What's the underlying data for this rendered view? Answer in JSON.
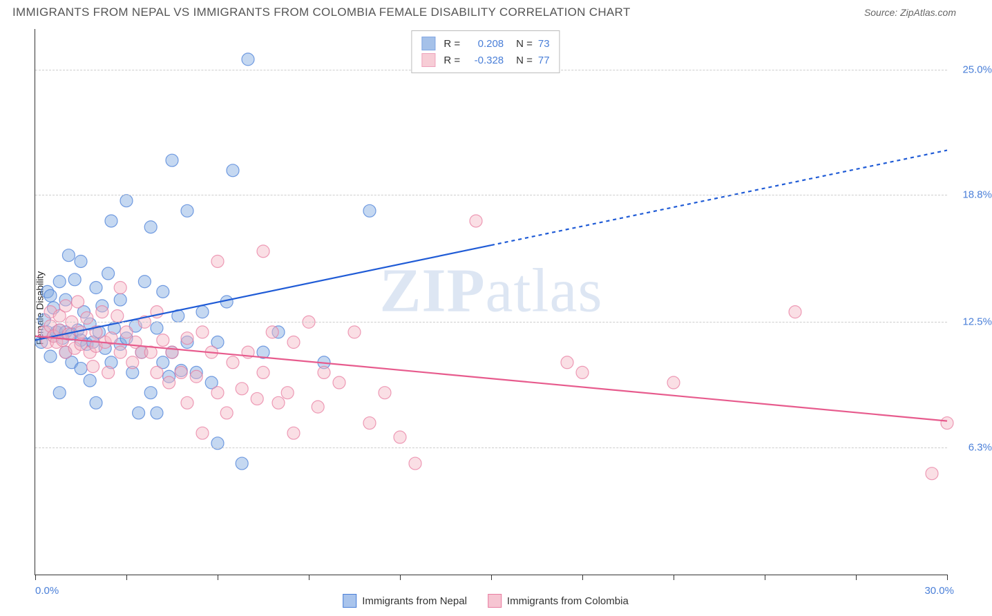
{
  "title": "IMMIGRANTS FROM NEPAL VS IMMIGRANTS FROM COLOMBIA FEMALE DISABILITY CORRELATION CHART",
  "source": "Source: ZipAtlas.com",
  "watermark_zip": "ZIP",
  "watermark_atlas": "atlas",
  "ylabel": "Female Disability",
  "chart": {
    "type": "scatter",
    "xlim": [
      0,
      30
    ],
    "ylim": [
      0,
      27
    ],
    "xlim_labels": {
      "min": "0.0%",
      "max": "30.0%"
    },
    "xticks": [
      0,
      3,
      6,
      9,
      12,
      15,
      18,
      21,
      24,
      27,
      30
    ],
    "yticks": [
      {
        "value": 6.3,
        "label": "6.3%"
      },
      {
        "value": 12.5,
        "label": "12.5%"
      },
      {
        "value": 18.8,
        "label": "18.8%"
      },
      {
        "value": 25.0,
        "label": "25.0%"
      }
    ],
    "grid_color": "#cccccc",
    "background_color": "#ffffff",
    "marker_radius": 9,
    "marker_opacity": 0.45,
    "marker_stroke_opacity": 0.75,
    "line_width": 2.2,
    "dash_pattern": "5,5",
    "series": [
      {
        "name": "Immigrants from Nepal",
        "color": "#7fa8e0",
        "stroke": "#4a7fd8",
        "line_color": "#1f5bd6",
        "r_value": "0.208",
        "n_value": "73",
        "trend_solid": {
          "x1": 0,
          "y1": 11.6,
          "x2": 15,
          "y2": 16.3
        },
        "trend_dash": {
          "x1": 15,
          "y1": 16.3,
          "x2": 30,
          "y2": 21.0
        },
        "points": [
          [
            0.2,
            11.5
          ],
          [
            0.3,
            12.6
          ],
          [
            0.4,
            12.0
          ],
          [
            0.4,
            14.0
          ],
          [
            0.5,
            10.8
          ],
          [
            0.5,
            13.8
          ],
          [
            0.6,
            11.8
          ],
          [
            0.6,
            13.2
          ],
          [
            0.7,
            12.0
          ],
          [
            0.8,
            9.0
          ],
          [
            0.8,
            12.1
          ],
          [
            0.8,
            14.5
          ],
          [
            0.9,
            11.7
          ],
          [
            1.0,
            12.0
          ],
          [
            1.0,
            11.0
          ],
          [
            1.0,
            13.6
          ],
          [
            1.1,
            15.8
          ],
          [
            1.2,
            10.5
          ],
          [
            1.2,
            11.9
          ],
          [
            1.3,
            14.6
          ],
          [
            1.4,
            12.1
          ],
          [
            1.5,
            11.6
          ],
          [
            1.5,
            10.2
          ],
          [
            1.5,
            15.5
          ],
          [
            1.6,
            13.0
          ],
          [
            1.7,
            11.4
          ],
          [
            1.8,
            12.4
          ],
          [
            1.8,
            9.6
          ],
          [
            1.9,
            11.5
          ],
          [
            2.0,
            14.2
          ],
          [
            2.0,
            8.5
          ],
          [
            2.1,
            12.0
          ],
          [
            2.2,
            13.3
          ],
          [
            2.3,
            11.2
          ],
          [
            2.4,
            14.9
          ],
          [
            2.5,
            10.5
          ],
          [
            2.5,
            17.5
          ],
          [
            2.6,
            12.2
          ],
          [
            2.8,
            13.6
          ],
          [
            2.8,
            11.4
          ],
          [
            3.0,
            18.5
          ],
          [
            3.0,
            11.7
          ],
          [
            3.2,
            10.0
          ],
          [
            3.3,
            12.3
          ],
          [
            3.4,
            8.0
          ],
          [
            3.5,
            11.0
          ],
          [
            3.6,
            14.5
          ],
          [
            3.8,
            9.0
          ],
          [
            3.8,
            17.2
          ],
          [
            4.0,
            12.2
          ],
          [
            4.0,
            8.0
          ],
          [
            4.2,
            10.5
          ],
          [
            4.2,
            14.0
          ],
          [
            4.4,
            9.8
          ],
          [
            4.5,
            11.0
          ],
          [
            4.5,
            20.5
          ],
          [
            4.7,
            12.8
          ],
          [
            4.8,
            10.1
          ],
          [
            5.0,
            18.0
          ],
          [
            5.0,
            11.5
          ],
          [
            5.3,
            10.0
          ],
          [
            5.5,
            13.0
          ],
          [
            5.8,
            9.5
          ],
          [
            6.0,
            6.5
          ],
          [
            6.0,
            11.5
          ],
          [
            6.3,
            13.5
          ],
          [
            6.5,
            20.0
          ],
          [
            6.8,
            5.5
          ],
          [
            7.0,
            25.5
          ],
          [
            7.5,
            11.0
          ],
          [
            8.0,
            12.0
          ],
          [
            9.5,
            10.5
          ],
          [
            11.0,
            18.0
          ]
        ]
      },
      {
        "name": "Immigrants from Colombia",
        "color": "#f4b9c6",
        "stroke": "#e87ca0",
        "line_color": "#e75b8d",
        "r_value": "-0.328",
        "n_value": "77",
        "trend_solid": {
          "x1": 0,
          "y1": 11.8,
          "x2": 30,
          "y2": 7.6
        },
        "trend_dash": null,
        "points": [
          [
            0.3,
            12.0
          ],
          [
            0.4,
            11.5
          ],
          [
            0.5,
            12.3
          ],
          [
            0.5,
            13.0
          ],
          [
            0.6,
            11.8
          ],
          [
            0.7,
            11.5
          ],
          [
            0.8,
            12.1
          ],
          [
            0.8,
            12.8
          ],
          [
            0.9,
            11.6
          ],
          [
            1.0,
            13.3
          ],
          [
            1.0,
            11.0
          ],
          [
            1.1,
            11.9
          ],
          [
            1.2,
            12.5
          ],
          [
            1.3,
            11.2
          ],
          [
            1.4,
            13.5
          ],
          [
            1.5,
            12.0
          ],
          [
            1.5,
            11.4
          ],
          [
            1.7,
            12.7
          ],
          [
            1.8,
            11.0
          ],
          [
            1.9,
            10.3
          ],
          [
            2.0,
            12.0
          ],
          [
            2.0,
            11.3
          ],
          [
            2.2,
            13.0
          ],
          [
            2.3,
            11.5
          ],
          [
            2.4,
            10.0
          ],
          [
            2.5,
            11.7
          ],
          [
            2.7,
            12.8
          ],
          [
            2.8,
            11.0
          ],
          [
            2.8,
            14.2
          ],
          [
            3.0,
            12.0
          ],
          [
            3.2,
            10.5
          ],
          [
            3.3,
            11.5
          ],
          [
            3.5,
            11.0
          ],
          [
            3.6,
            12.5
          ],
          [
            3.8,
            11.0
          ],
          [
            4.0,
            10.0
          ],
          [
            4.0,
            13.0
          ],
          [
            4.2,
            11.6
          ],
          [
            4.4,
            9.5
          ],
          [
            4.5,
            11.0
          ],
          [
            4.8,
            10.0
          ],
          [
            5.0,
            11.7
          ],
          [
            5.0,
            8.5
          ],
          [
            5.3,
            9.8
          ],
          [
            5.5,
            12.0
          ],
          [
            5.5,
            7.0
          ],
          [
            5.8,
            11.0
          ],
          [
            6.0,
            9.0
          ],
          [
            6.0,
            15.5
          ],
          [
            6.3,
            8.0
          ],
          [
            6.5,
            10.5
          ],
          [
            6.8,
            9.2
          ],
          [
            7.0,
            11.0
          ],
          [
            7.3,
            8.7
          ],
          [
            7.5,
            10.0
          ],
          [
            7.5,
            16.0
          ],
          [
            7.8,
            12.0
          ],
          [
            8.0,
            8.5
          ],
          [
            8.3,
            9.0
          ],
          [
            8.5,
            11.5
          ],
          [
            8.5,
            7.0
          ],
          [
            9.0,
            12.5
          ],
          [
            9.3,
            8.3
          ],
          [
            9.5,
            10.0
          ],
          [
            10.0,
            9.5
          ],
          [
            10.5,
            12.0
          ],
          [
            11.0,
            7.5
          ],
          [
            11.5,
            9.0
          ],
          [
            12.0,
            6.8
          ],
          [
            12.5,
            5.5
          ],
          [
            14.5,
            17.5
          ],
          [
            17.5,
            10.5
          ],
          [
            18.0,
            10.0
          ],
          [
            21.0,
            9.5
          ],
          [
            25.0,
            13.0
          ],
          [
            29.5,
            5.0
          ],
          [
            30.0,
            7.5
          ]
        ]
      }
    ]
  },
  "legend_bottom": [
    {
      "label": "Immigrants from Nepal",
      "fill": "#a9c4ec",
      "border": "#4a7fd8"
    },
    {
      "label": "Immigrants from Colombia",
      "fill": "#f6c5d2",
      "border": "#e87ca0"
    }
  ]
}
